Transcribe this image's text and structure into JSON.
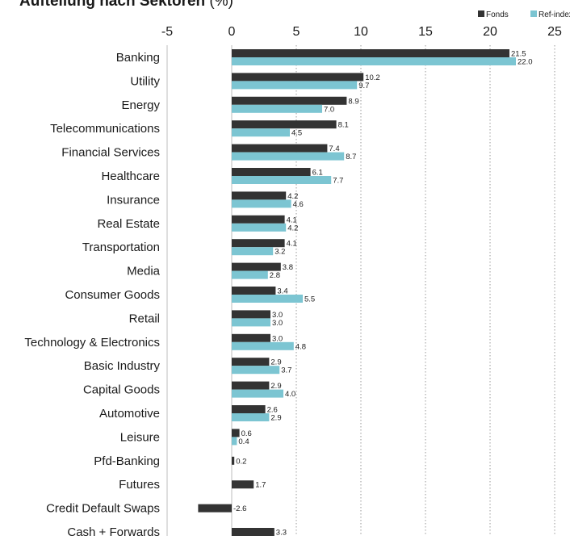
{
  "chart_data": {
    "type": "bar",
    "orientation": "horizontal",
    "title": "Aufteilung nach Sektoren",
    "title_unit": "(%)",
    "xlim": [
      -5,
      25
    ],
    "xticks": [
      -5,
      0,
      5,
      10,
      15,
      20,
      25
    ],
    "grid": "vertical dotted",
    "legend_position": "top-right",
    "categories": [
      "Banking",
      "Utility",
      "Energy",
      "Telecommunications",
      "Financial Services",
      "Healthcare",
      "Insurance",
      "Real Estate",
      "Transportation",
      "Media",
      "Consumer Goods",
      "Retail",
      "Technology & Electronics",
      "Basic Industry",
      "Capital Goods",
      "Automotive",
      "Leisure",
      "Pfd-Banking",
      "Futures",
      "Credit Default Swaps",
      "Cash + Forwards"
    ],
    "series": [
      {
        "name": "Fonds",
        "color": "#333333",
        "values": [
          21.5,
          10.2,
          8.9,
          8.1,
          7.4,
          6.1,
          4.2,
          4.1,
          4.1,
          3.8,
          3.4,
          3.0,
          3.0,
          2.9,
          2.9,
          2.6,
          0.6,
          0.2,
          1.7,
          -2.6,
          3.3
        ]
      },
      {
        "name": "Ref-index",
        "color": "#7cc5d2",
        "values": [
          22.0,
          9.7,
          7.0,
          4.5,
          8.7,
          7.7,
          4.6,
          4.2,
          3.2,
          2.8,
          5.5,
          3.0,
          4.8,
          3.7,
          4.0,
          2.9,
          0.4,
          null,
          null,
          null,
          null
        ]
      }
    ]
  }
}
